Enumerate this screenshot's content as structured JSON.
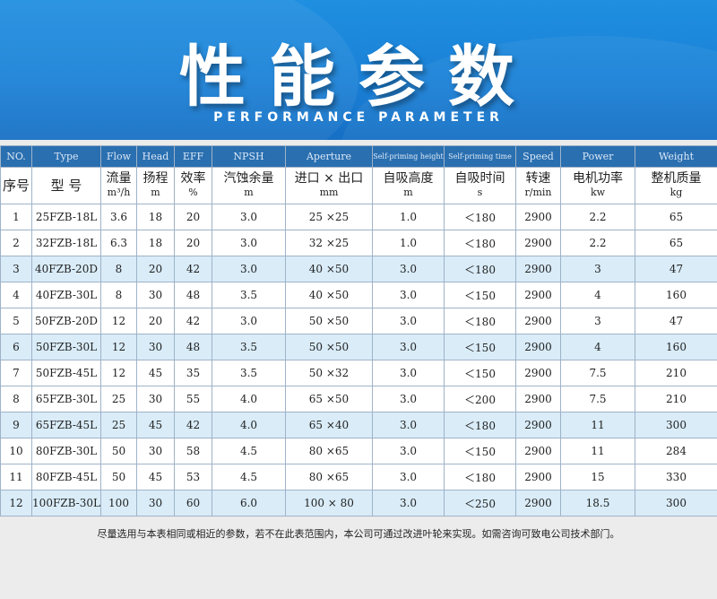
{
  "header": {
    "title": "性能参数",
    "subtitle": "PERFORMANCE PARAMETER"
  },
  "table": {
    "headers_en": [
      "NO.",
      "Type",
      "Flow",
      "Head",
      "EFF",
      "NPSH",
      "Aperture",
      "Self-priming height",
      "Self-priming time",
      "Speed",
      "Power",
      "Weight"
    ],
    "headers_cn": [
      {
        "label": "序号",
        "unit": ""
      },
      {
        "label": "型 号",
        "unit": ""
      },
      {
        "label": "流量",
        "unit": "m³/h"
      },
      {
        "label": "扬程",
        "unit": "m"
      },
      {
        "label": "效率",
        "unit": "%"
      },
      {
        "label": "汽蚀余量",
        "unit": "m"
      },
      {
        "label": "进口 × 出口",
        "unit": "mm"
      },
      {
        "label": "自吸高度",
        "unit": "m"
      },
      {
        "label": "自吸时间",
        "unit": "s"
      },
      {
        "label": "转速",
        "unit": "r/min"
      },
      {
        "label": "电机功率",
        "unit": "kw"
      },
      {
        "label": "整机质量",
        "unit": "kg"
      }
    ],
    "rows": [
      [
        "1",
        "25FZB-18L",
        "3.6",
        "18",
        "20",
        "3.0",
        "25 ×25",
        "1.0",
        "＜180",
        "2900",
        "2.2",
        "65"
      ],
      [
        "2",
        "32FZB-18L",
        "6.3",
        "18",
        "20",
        "3.0",
        "32 ×25",
        "1.0",
        "＜180",
        "2900",
        "2.2",
        "65"
      ],
      [
        "3",
        "40FZB-20D",
        "8",
        "20",
        "42",
        "3.0",
        "40 ×50",
        "3.0",
        "＜180",
        "2900",
        "3",
        "47"
      ],
      [
        "4",
        "40FZB-30L",
        "8",
        "30",
        "48",
        "3.5",
        "40 ×50",
        "3.0",
        "＜150",
        "2900",
        "4",
        "160"
      ],
      [
        "5",
        "50FZB-20D",
        "12",
        "20",
        "42",
        "3.0",
        "50 ×50",
        "3.0",
        "＜180",
        "2900",
        "3",
        "47"
      ],
      [
        "6",
        "50FZB-30L",
        "12",
        "30",
        "48",
        "3.5",
        "50 ×50",
        "3.0",
        "＜150",
        "2900",
        "4",
        "160"
      ],
      [
        "7",
        "50FZB-45L",
        "12",
        "45",
        "35",
        "3.5",
        "50 ×32",
        "3.0",
        "＜150",
        "2900",
        "7.5",
        "210"
      ],
      [
        "8",
        "65FZB-30L",
        "25",
        "30",
        "55",
        "4.0",
        "65 ×50",
        "3.0",
        "＜200",
        "2900",
        "7.5",
        "210"
      ],
      [
        "9",
        "65FZB-45L",
        "25",
        "45",
        "42",
        "4.0",
        "65 ×40",
        "3.0",
        "＜180",
        "2900",
        "11",
        "300"
      ],
      [
        "10",
        "80FZB-30L",
        "50",
        "30",
        "58",
        "4.5",
        "80 ×65",
        "3.0",
        "＜150",
        "2900",
        "11",
        "284"
      ],
      [
        "11",
        "80FZB-45L",
        "50",
        "45",
        "53",
        "4.5",
        "80 ×65",
        "3.0",
        "＜180",
        "2900",
        "15",
        "330"
      ],
      [
        "12",
        "100FZB-30L",
        "100",
        "30",
        "60",
        "6.0",
        "100 × 80",
        "3.0",
        "＜250",
        "2900",
        "18.5",
        "300"
      ]
    ]
  },
  "footnote": "尽量选用与本表相同或相近的参数，若不在此表范围内，本公司可通过改进叶轮来实现。如需咨询可致电公司技术部门。",
  "colors": {
    "banner": "#1a80d6",
    "header_row": "#2a6fb0",
    "highlight_row": "#d9ecf8",
    "grid": "#9fb3c8"
  }
}
